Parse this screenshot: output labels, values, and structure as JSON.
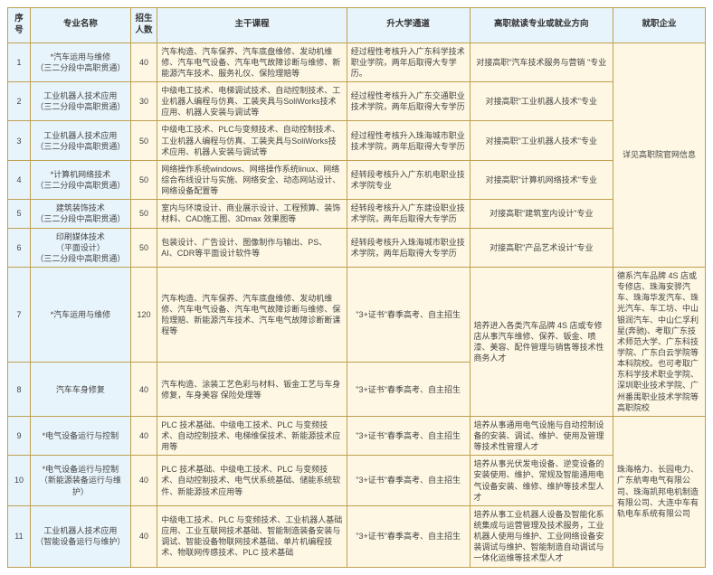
{
  "headers": {
    "seq": "序号",
    "name": "专业名称",
    "num": "招生人数",
    "courses": "主干课程",
    "path": "升大学通道",
    "direction": "高职就读专业或就业方向",
    "corp": "就职企业"
  },
  "rows": [
    {
      "seq": "1",
      "name": "*汽车运用与维修\n（三二分段中高职贯通）",
      "num": "40",
      "courses": "汽车构造、汽车保养、汽车底盘维修、发动机维修、汽车电气设备、汽车电气故障诊断与维修、新能源汽车技术、服务礼仪、保险理赔等",
      "path": "经过程性考核升入广东科学技术职业学院，两年后取得大专学历。",
      "direction": "对接高职\"汽车技术服务与营销 \"专业"
    },
    {
      "seq": "2",
      "name": "工业机器人技术应用\n（三二分段中高职贯通）",
      "num": "30",
      "courses": "中级电工技术、电梯调试技术、自动控制技术、工业机器人编程与仿真、工装夹具与SoliWorks技术应用、机器人安装与调试等",
      "path": "经过程性考核升入广东交通职业技术学院，两年后取得大专学历",
      "direction": "对接高职\"工业机器人技术\"专业"
    },
    {
      "seq": "3",
      "name": "工业机器人技术应用\n（三二分段中高职贯通）",
      "num": "50",
      "courses": "中级电工技术、PLC与变频技术、自动控制技术、工业机器人编程与仿真、工装夹具与SoliWorks技术应用、机器人安装与调试等",
      "path": "经过程性考核升入珠海城市职业技术学院，两年后取得大专学历",
      "direction": "对接高职\"工业机器人技术\"专业"
    },
    {
      "seq": "4",
      "name": "*计算机网络技术\n（三二分段中高职贯通）",
      "num": "50",
      "courses": "网络操作系统windows、网络操作系统linux、网络综合布线设计与实施、网络安全、动态网站设计、网络设备配置等",
      "path": "经转段考核升入广东机电职业技术学院专业",
      "direction": "对接高职\"计算机网络技术\"专业"
    },
    {
      "seq": "5",
      "name": "建筑装饰技术\n（三二分段中高职贯通）",
      "num": "50",
      "courses": "室内与环境设计、商业展示设计、工程预算、装饰材料、CAD施工图、3Dmax 效果图等",
      "path": "经转段考核升入广东建设职业技术学院，两年后取得大专学历",
      "direction": "对接高职\"建筑室内设计\"专业"
    },
    {
      "seq": "6",
      "name": "印刷媒体技术\n（平面设计）\n（三二分段中高职贯通）",
      "num": "50",
      "courses": "包装设计、广告设计、图像制作与输出、PS、AI、CDR等平面设计软件等",
      "path": "经转段考核升入珠海城市职业技术学院，两年后取得大专学历",
      "direction": "对接高职\"产品艺术设计\"专业"
    },
    {
      "seq": "7",
      "name": "*汽车运用与维修",
      "num": "120",
      "courses": "汽车构造、汽车保养、汽车底盘维修、发动机维修、汽车电气设备、汽车电气故障诊断与维修、保险理赔、新能源汽车技术、汽车电气故障诊断断课程等",
      "path": "\"3+证书\"春季高考、自主招生",
      "direction": "培养进入各类汽车品牌 4S 店或专修店从事汽车维修、保养、钣金、喷漆、美容、配件管理与销售等技术性商务人才"
    },
    {
      "seq": "8",
      "name": "汽车车身修复",
      "num": "40",
      "courses": "汽车构造、涂装工艺色彩与材料、钣金工艺与车身修复，车身美容 保险处理等",
      "path": "\"3+证书\"春季高考、自主招生",
      "direction": ""
    },
    {
      "seq": "9",
      "name": "*电气设备运行与控制",
      "num": "40",
      "courses": "PLC 技术基础、中级电工技术、PLC 与变频技术、自动控制技术、电梯维保技术、新能源技术应用等",
      "path": "\"3+证书\"春季高考、自主招生",
      "direction": "培养从事通用电气设施与自动控制设备的安装、调试、维护、使用及管理等技术性管理人才"
    },
    {
      "seq": "10",
      "name": "*电气设备运行与控制\n（新能源装备运行与维护）",
      "num": "40",
      "courses": "PLC 技术基础、中级电工技术、PLC 与变频技术、自动控制技术、电气伏系统基础、储能系统软件、新能源技术应用等",
      "path": "\"3+证书\"春季高考、自主招生",
      "direction": "培养从事光伏发电设备、逆变设备的安装使用、维护、常规及智能通用电气设备安装、维修、维护等技术型人才"
    },
    {
      "seq": "11",
      "name": "工业机器人技术应用\n（智能设备运行与维护）",
      "num": "40",
      "courses": "中级电工技术、PLC 与变频技术、工业机器人基础应用、工业互联网技术基础、智能制造装备安装与调试、智能设备物联网技术基础、单片机编程技术、物联网传感技术、PLC 技术基础",
      "path": "\"3+证书\"春季高考、自主招生",
      "direction": "培养从事工业机器人设备及智能化系统集成与运营管理及技术服务，工业机器人使用与维护、工业网络设备安装调试与维护、智能制造自动调试与一体化运维等技术型人才"
    }
  ],
  "corpGroup1": "详见高职院官网信息",
  "corpGroup2": "德系汽车品牌 4S 店或专修店、珠海安骅汽车、珠海华发汽车、珠光汽车、车工坊、中山银润汽车、中山仁孚利星(奔驰)、考取广东技术师范大学、广东科技学院、广东白云学院等本科院校。也可考取广东科学技术职业学院、深圳职业技术学院、广州番禺职业技术学院等高职院校",
  "corpGroup3": "珠海格力、长园电力、广东航粤电气有限公司、珠海凯邦电机制造有限公司、大连中车有轨电车系统有限公司"
}
